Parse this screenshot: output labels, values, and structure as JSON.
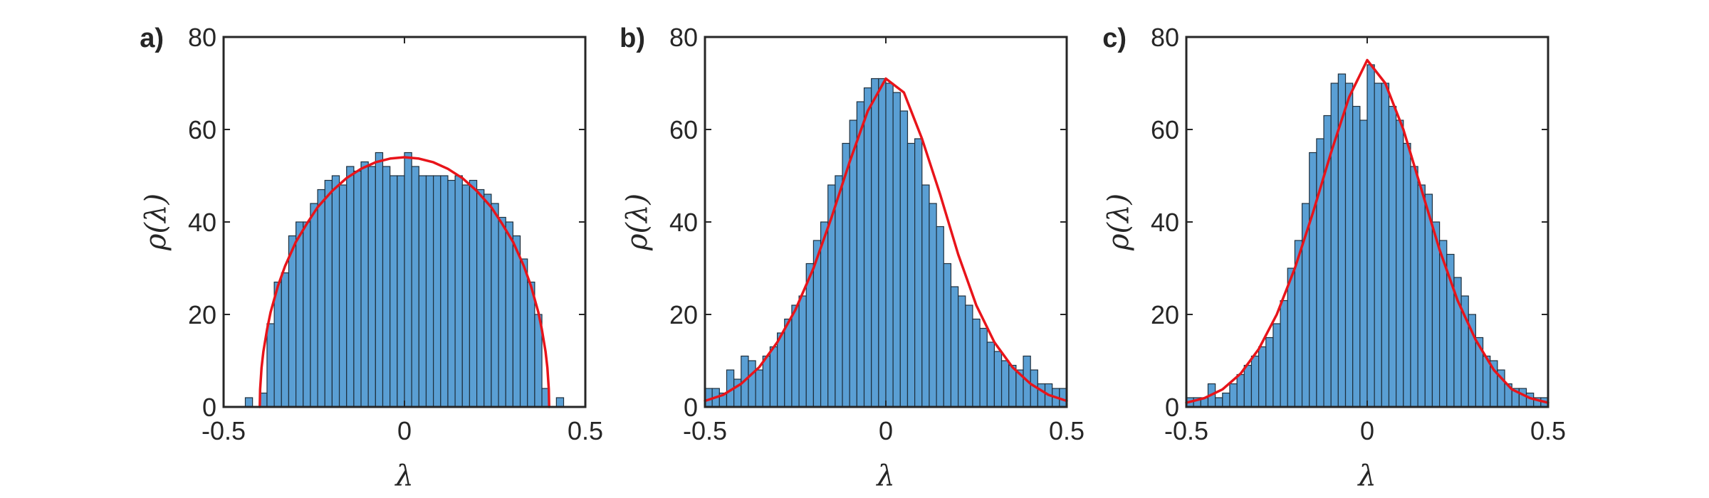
{
  "chart_data": [
    {
      "type": "bar",
      "panel_label": "a)",
      "xlabel": "λ",
      "ylabel": "ρ(λ)",
      "xlim": [
        -0.5,
        0.5
      ],
      "ylim": [
        0,
        80
      ],
      "xticks": [
        "-0.5",
        "0",
        "0.5"
      ],
      "yticks": [
        "0",
        "20",
        "40",
        "60",
        "80"
      ],
      "bin_width": 0.02,
      "histogram": {
        "x": [
          -0.43,
          -0.39,
          -0.37,
          -0.35,
          -0.33,
          -0.31,
          -0.29,
          -0.27,
          -0.25,
          -0.23,
          -0.21,
          -0.19,
          -0.17,
          -0.15,
          -0.13,
          -0.11,
          -0.09,
          -0.07,
          -0.05,
          -0.03,
          -0.01,
          0.01,
          0.03,
          0.05,
          0.07,
          0.09,
          0.11,
          0.13,
          0.15,
          0.17,
          0.19,
          0.21,
          0.23,
          0.25,
          0.27,
          0.29,
          0.31,
          0.33,
          0.35,
          0.37,
          0.39,
          0.43
        ],
        "values": [
          2,
          3,
          18,
          27,
          29,
          37,
          40,
          40,
          44,
          47,
          49,
          50,
          48,
          52,
          51,
          53,
          52,
          55,
          52,
          50,
          50,
          55,
          52,
          50,
          50,
          50,
          50,
          49,
          50,
          48,
          49,
          47,
          46,
          44,
          41,
          40,
          37,
          32,
          27,
          20,
          4,
          2
        ]
      },
      "curve": {
        "x": [
          -0.4,
          -0.399,
          -0.395,
          -0.39,
          -0.38,
          -0.37,
          -0.35,
          -0.33,
          -0.3,
          -0.27,
          -0.24,
          -0.2,
          -0.16,
          -0.12,
          -0.08,
          -0.04,
          0,
          0.04,
          0.08,
          0.12,
          0.16,
          0.2,
          0.24,
          0.27,
          0.3,
          0.33,
          0.35,
          0.37,
          0.38,
          0.39,
          0.395,
          0.399,
          0.4
        ],
        "values": [
          0,
          3.8,
          8.5,
          12,
          16.7,
          20.5,
          26.1,
          30.5,
          35.7,
          39.6,
          43.2,
          46.7,
          49.5,
          51.5,
          52.9,
          53.7,
          54,
          53.7,
          52.9,
          51.5,
          49.5,
          46.7,
          43.2,
          39.6,
          35.7,
          30.5,
          26.1,
          20.5,
          16.7,
          12,
          8.5,
          3.8,
          0
        ]
      }
    },
    {
      "type": "bar",
      "panel_label": "b)",
      "xlabel": "λ",
      "ylabel": "ρ(λ)",
      "xlim": [
        -0.5,
        0.5
      ],
      "ylim": [
        0,
        80
      ],
      "xticks": [
        "-0.5",
        "0",
        "0.5"
      ],
      "yticks": [
        "0",
        "20",
        "40",
        "60",
        "80"
      ],
      "bin_width": 0.02,
      "histogram": {
        "x": [
          -0.49,
          -0.47,
          -0.45,
          -0.43,
          -0.41,
          -0.39,
          -0.37,
          -0.35,
          -0.33,
          -0.31,
          -0.29,
          -0.27,
          -0.25,
          -0.23,
          -0.21,
          -0.19,
          -0.17,
          -0.15,
          -0.13,
          -0.11,
          -0.09,
          -0.07,
          -0.05,
          -0.03,
          -0.01,
          0.01,
          0.03,
          0.05,
          0.07,
          0.09,
          0.11,
          0.13,
          0.15,
          0.17,
          0.19,
          0.21,
          0.23,
          0.25,
          0.27,
          0.29,
          0.31,
          0.33,
          0.35,
          0.37,
          0.39,
          0.41,
          0.43,
          0.45,
          0.47,
          0.49
        ],
        "values": [
          4,
          4,
          3,
          8,
          6,
          11,
          10,
          8,
          11,
          13,
          16,
          19,
          22,
          24,
          31,
          36,
          40,
          48,
          50,
          57,
          62,
          66,
          69,
          71,
          71,
          70,
          68,
          64,
          57,
          58,
          48,
          44,
          39,
          31,
          26,
          24,
          22,
          19,
          17,
          14,
          12,
          10,
          9,
          8,
          11,
          8,
          5,
          5,
          4,
          4
        ]
      },
      "curve": {
        "x": [
          -0.5,
          -0.45,
          -0.4,
          -0.35,
          -0.3,
          -0.25,
          -0.2,
          -0.15,
          -0.1,
          -0.05,
          0,
          0.05,
          0.1,
          0.15,
          0.2,
          0.25,
          0.3,
          0.35,
          0.4,
          0.45,
          0.5
        ],
        "values": [
          1.3,
          2.6,
          5,
          8.6,
          14,
          21,
          30,
          41,
          53,
          64,
          71,
          68,
          58,
          46,
          33,
          22,
          14,
          8.6,
          5,
          2.6,
          1.3
        ]
      }
    },
    {
      "type": "bar",
      "panel_label": "c)",
      "xlabel": "λ",
      "ylabel": "ρ(λ)",
      "xlim": [
        -0.5,
        0.5
      ],
      "ylim": [
        0,
        80
      ],
      "xticks": [
        "-0.5",
        "0",
        "0.5"
      ],
      "yticks": [
        "0",
        "20",
        "40",
        "60",
        "80"
      ],
      "bin_width": 0.02,
      "histogram": {
        "x": [
          -0.49,
          -0.47,
          -0.45,
          -0.43,
          -0.41,
          -0.39,
          -0.37,
          -0.35,
          -0.33,
          -0.31,
          -0.29,
          -0.27,
          -0.25,
          -0.23,
          -0.21,
          -0.19,
          -0.17,
          -0.15,
          -0.13,
          -0.11,
          -0.09,
          -0.07,
          -0.05,
          -0.03,
          -0.01,
          0.01,
          0.03,
          0.05,
          0.07,
          0.09,
          0.11,
          0.13,
          0.15,
          0.17,
          0.19,
          0.21,
          0.23,
          0.25,
          0.27,
          0.29,
          0.31,
          0.33,
          0.35,
          0.37,
          0.39,
          0.41,
          0.43,
          0.45,
          0.47,
          0.49
        ],
        "values": [
          2,
          2,
          2,
          5,
          2,
          3,
          5,
          7,
          9,
          11,
          13,
          15,
          18,
          23,
          30,
          36,
          44,
          55,
          58,
          63,
          70,
          72,
          70,
          65,
          62,
          74,
          70,
          70,
          65,
          62,
          57,
          52,
          48,
          46,
          40,
          36,
          33,
          28,
          24,
          20,
          15,
          11,
          10,
          8,
          5,
          4,
          4,
          3,
          2,
          2
        ]
      },
      "curve": {
        "x": [
          -0.5,
          -0.45,
          -0.4,
          -0.35,
          -0.3,
          -0.25,
          -0.2,
          -0.15,
          -0.1,
          -0.05,
          0,
          0.05,
          0.1,
          0.15,
          0.2,
          0.25,
          0.3,
          0.35,
          0.4,
          0.45,
          0.5
        ],
        "values": [
          0.9,
          1.9,
          3.8,
          7.2,
          12.5,
          20,
          30,
          42,
          55,
          67,
          75,
          70,
          60,
          47,
          34,
          23,
          14.5,
          8,
          3.8,
          1.9,
          0.9
        ]
      }
    }
  ]
}
